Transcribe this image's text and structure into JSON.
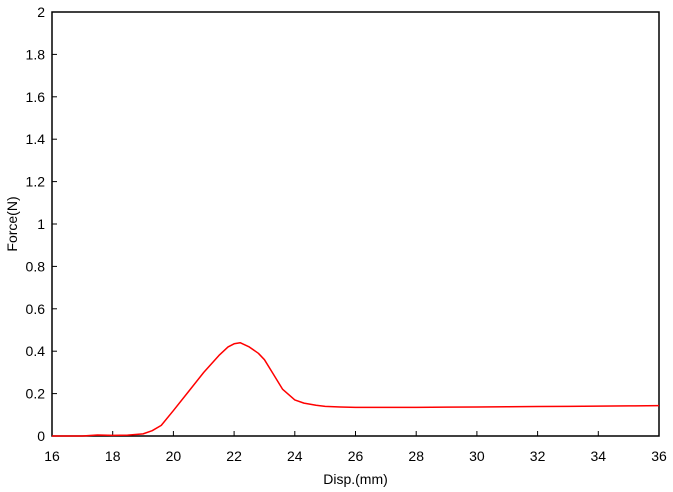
{
  "chart_data": {
    "type": "line",
    "title": "",
    "xlabel": "Disp.(mm)",
    "ylabel": "Force(N)",
    "xlim": [
      16,
      36
    ],
    "ylim": [
      0,
      2
    ],
    "x_ticks": [
      16,
      18,
      20,
      22,
      24,
      26,
      28,
      30,
      32,
      34,
      36
    ],
    "y_ticks": [
      0,
      0.2,
      0.4,
      0.6,
      0.8,
      1,
      1.2,
      1.4,
      1.6,
      1.8,
      2
    ],
    "grid": false,
    "legend": "none",
    "series": [
      {
        "color": "#ff0000",
        "x": [
          16,
          17,
          17.5,
          18,
          18.5,
          19,
          19.3,
          19.6,
          20,
          20.5,
          21,
          21.5,
          21.8,
          22,
          22.2,
          22.5,
          22.8,
          23,
          23.3,
          23.6,
          24,
          24.3,
          24.7,
          25,
          25.5,
          26,
          27,
          28,
          29,
          30,
          31,
          32,
          33,
          34,
          35,
          36
        ],
        "y": [
          0.0,
          0.0,
          0.005,
          0.003,
          0.004,
          0.01,
          0.025,
          0.05,
          0.12,
          0.21,
          0.3,
          0.38,
          0.42,
          0.435,
          0.44,
          0.42,
          0.39,
          0.36,
          0.29,
          0.22,
          0.17,
          0.155,
          0.145,
          0.14,
          0.137,
          0.135,
          0.135,
          0.135,
          0.136,
          0.137,
          0.138,
          0.139,
          0.14,
          0.141,
          0.142,
          0.143
        ]
      }
    ]
  }
}
